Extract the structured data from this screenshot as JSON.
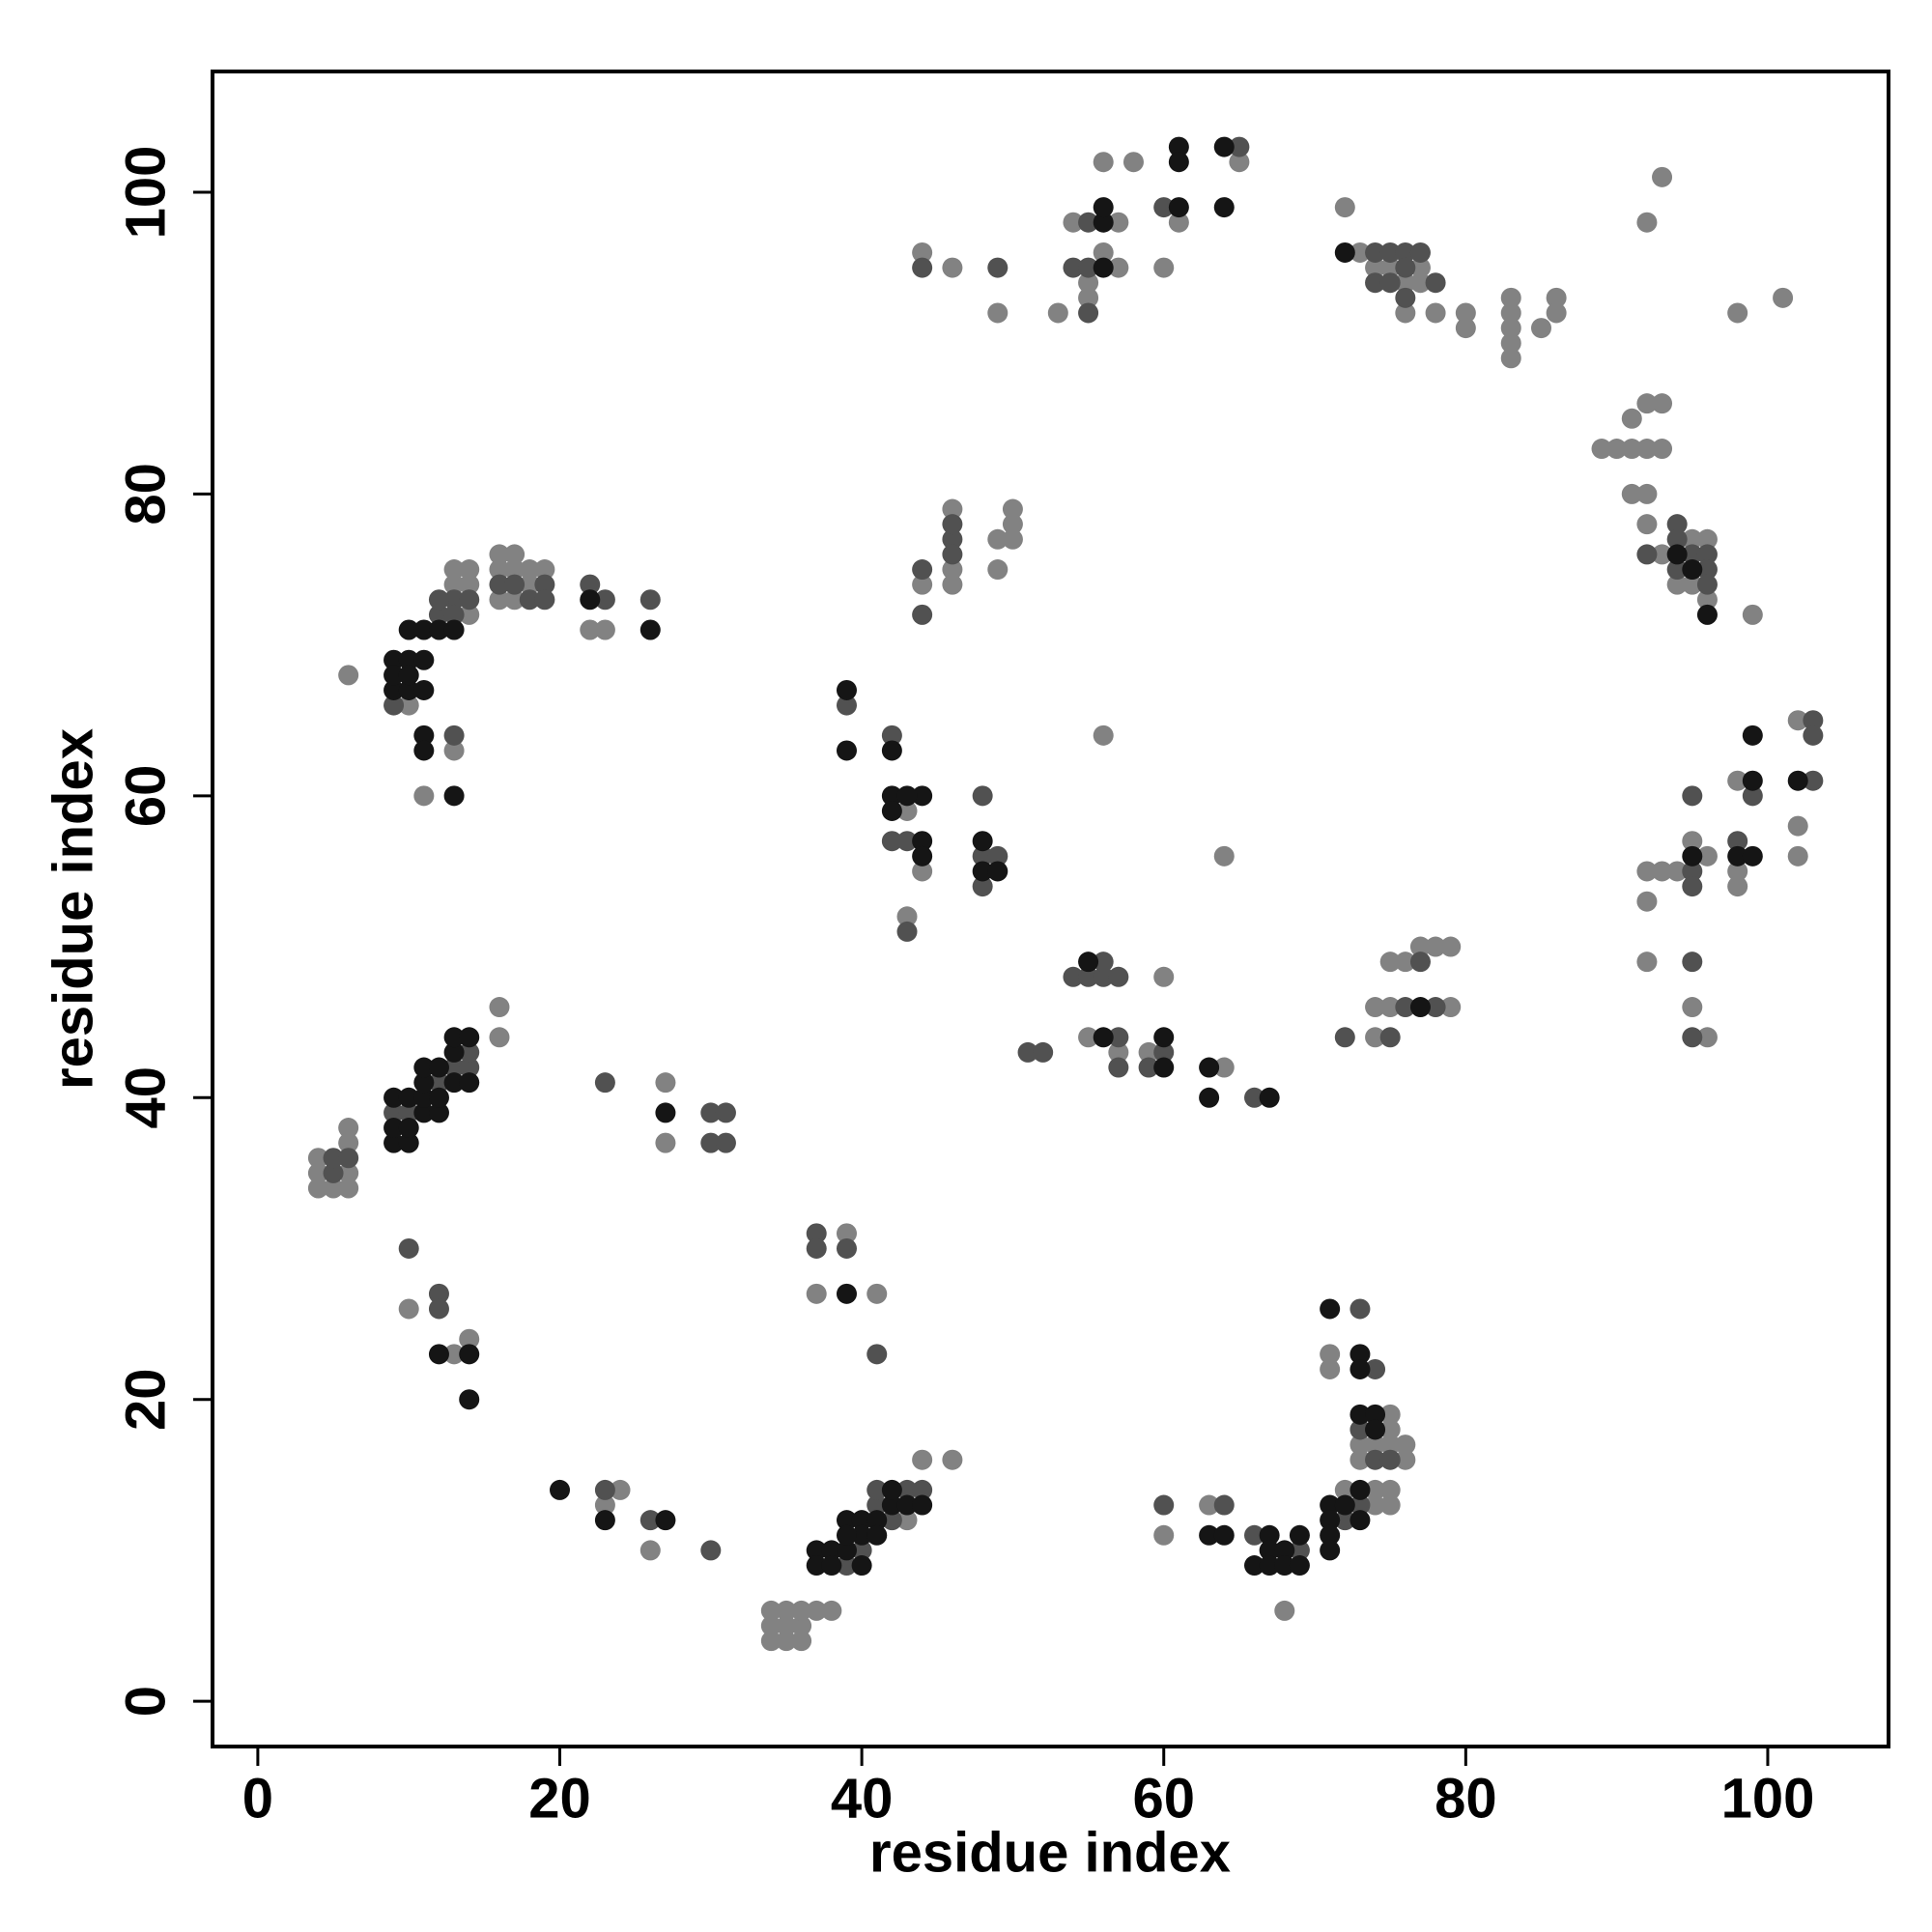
{
  "chart_data": {
    "type": "scatter",
    "xlabel": "residue index",
    "ylabel": "residue index",
    "xlim": [
      -3,
      108
    ],
    "ylim": [
      -3,
      108
    ],
    "xticks": [
      0,
      20,
      40,
      60,
      80,
      100
    ],
    "yticks": [
      0,
      20,
      40,
      60,
      80,
      100
    ],
    "grid": false,
    "series": [
      {
        "color": "#828282",
        "x": [
          4,
          5,
          6,
          4,
          6,
          4,
          6,
          6,
          16,
          16,
          10,
          11,
          13,
          13,
          14,
          13,
          14,
          14,
          6,
          16,
          17,
          16,
          17,
          18,
          19,
          16,
          17,
          18,
          22,
          23,
          27,
          27,
          10,
          13,
          14,
          24,
          23,
          26,
          34,
          35,
          36,
          34,
          35,
          36,
          34,
          35,
          36,
          37,
          38,
          44,
          46,
          43,
          39,
          37,
          41,
          43,
          43,
          44,
          44,
          46,
          46,
          46,
          49,
          50,
          50,
          50,
          49,
          44,
          46,
          49,
          53,
          54,
          57,
          55,
          55,
          56,
          57,
          56,
          58,
          60,
          61,
          65,
          55,
          57,
          59,
          60,
          64,
          56,
          64,
          60,
          63,
          68,
          71,
          71,
          75,
          75,
          73,
          74,
          75,
          76,
          73,
          76,
          72,
          74,
          75,
          74,
          75,
          72,
          73,
          74,
          75,
          77,
          76,
          77,
          76,
          78,
          80,
          80,
          83,
          83,
          83,
          83,
          83,
          85,
          86,
          86,
          92,
          93,
          98,
          101,
          74,
          75,
          79,
          75,
          76,
          77,
          78,
          79,
          74,
          89,
          90,
          91,
          92,
          93,
          91,
          92,
          93,
          91,
          92,
          92,
          93,
          95,
          96,
          94,
          95,
          96,
          99,
          92,
          93,
          94,
          92,
          92,
          95,
          96,
          95,
          96,
          98,
          98,
          98,
          102,
          102,
          102
        ],
        "values": [
          34,
          34,
          34,
          35,
          35,
          36,
          37,
          38,
          46,
          44,
          66,
          60,
          63,
          74,
          74,
          75,
          75,
          72,
          68,
          76,
          76,
          75,
          75,
          75,
          75,
          73,
          73,
          74,
          71,
          71,
          41,
          37,
          26,
          23,
          24,
          14,
          13,
          10,
          4,
          4,
          4,
          5,
          5,
          5,
          6,
          6,
          6,
          6,
          6,
          16,
          16,
          12,
          31,
          27,
          27,
          59,
          52,
          55,
          74,
          79,
          75,
          74,
          77,
          79,
          78,
          77,
          75,
          96,
          95,
          92,
          92,
          98,
          98,
          94,
          93,
          96,
          95,
          102,
          102,
          95,
          98,
          102,
          44,
          43,
          43,
          48,
          42,
          64,
          56,
          11,
          13,
          6,
          23,
          22,
          19,
          18,
          17,
          17,
          17,
          17,
          16,
          16,
          14,
          14,
          14,
          13,
          13,
          99,
          96,
          95,
          95,
          95,
          94,
          94,
          92,
          92,
          92,
          91,
          93,
          92,
          91,
          90,
          89,
          91,
          93,
          92,
          98,
          101,
          92,
          93,
          46,
          46,
          46,
          49,
          49,
          50,
          50,
          50,
          44,
          83,
          83,
          83,
          83,
          83,
          85,
          86,
          86,
          80,
          80,
          78,
          76,
          77,
          77,
          74,
          74,
          73,
          72,
          55,
          55,
          55,
          53,
          49,
          57,
          56,
          46,
          44,
          61,
          55,
          54,
          65,
          58,
          56
        ]
      },
      {
        "color": "#515151",
        "x": [
          5,
          5,
          6,
          9,
          10,
          12,
          13,
          14,
          14,
          9,
          13,
          14,
          12,
          13,
          13,
          12,
          16,
          17,
          19,
          18,
          19,
          22,
          23,
          26,
          23,
          30,
          31,
          30,
          31,
          10,
          12,
          12,
          23,
          26,
          30,
          39,
          40,
          41,
          42,
          43,
          44,
          41,
          37,
          37,
          39,
          41,
          39,
          42,
          42,
          43,
          43,
          48,
          48,
          49,
          48,
          44,
          44,
          46,
          46,
          46,
          44,
          49,
          55,
          55,
          54,
          55,
          60,
          65,
          51,
          52,
          54,
          55,
          56,
          57,
          56,
          57,
          57,
          59,
          60,
          66,
          60,
          64,
          66,
          69,
          73,
          74,
          73,
          74,
          75,
          73,
          72,
          74,
          75,
          76,
          77,
          76,
          74,
          75,
          78,
          76,
          72,
          76,
          78,
          77,
          75,
          92,
          94,
          94,
          95,
          96,
          94,
          96,
          96,
          95,
          95,
          95,
          95,
          95,
          98,
          99,
          103,
          103,
          103
        ],
        "values": [
          35,
          36,
          36,
          39,
          39,
          41,
          42,
          42,
          43,
          66,
          73,
          73,
          72,
          72,
          64,
          73,
          74,
          74,
          74,
          73,
          73,
          74,
          73,
          73,
          41,
          39,
          39,
          37,
          37,
          30,
          27,
          26,
          14,
          12,
          10,
          9,
          10,
          13,
          12,
          14,
          14,
          14,
          31,
          30,
          30,
          23,
          66,
          64,
          57,
          57,
          51,
          60,
          56,
          56,
          54,
          75,
          72,
          77,
          76,
          78,
          95,
          95,
          92,
          98,
          95,
          95,
          99,
          103,
          43,
          43,
          48,
          48,
          48,
          48,
          49,
          44,
          42,
          42,
          43,
          40,
          13,
          13,
          11,
          10,
          26,
          22,
          18,
          16,
          16,
          13,
          12,
          96,
          96,
          96,
          96,
          95,
          94,
          94,
          94,
          93,
          44,
          46,
          46,
          49,
          44,
          76,
          78,
          77,
          76,
          76,
          75,
          75,
          74,
          60,
          55,
          54,
          49,
          44,
          57,
          60,
          65,
          64,
          61
        ]
      },
      {
        "color": "#151515",
        "x": [
          9,
          9,
          9,
          10,
          10,
          10,
          11,
          11,
          11,
          11,
          12,
          12,
          12,
          13,
          13,
          13,
          14,
          14,
          10,
          11,
          12,
          13,
          9,
          10,
          11,
          9,
          10,
          11,
          9,
          10,
          11,
          11,
          13,
          22,
          26,
          27,
          12,
          14,
          14,
          20,
          23,
          27,
          37,
          38,
          39,
          37,
          38,
          40,
          39,
          40,
          41,
          40,
          41,
          42,
          43,
          42,
          44,
          39,
          39,
          39,
          39,
          42,
          42,
          44,
          42,
          44,
          44,
          43,
          48,
          48,
          49,
          56,
          56,
          56,
          61,
          61,
          61,
          64,
          64,
          55,
          56,
          60,
          60,
          63,
          63,
          67,
          63,
          64,
          67,
          67,
          68,
          66,
          67,
          68,
          69,
          69,
          71,
          73,
          73,
          73,
          74,
          74,
          71,
          72,
          73,
          73,
          71,
          71,
          71,
          72,
          77,
          94,
          95,
          96,
          95,
          98,
          99,
          99,
          99,
          102
        ],
        "values": [
          37,
          38,
          40,
          37,
          38,
          40,
          39,
          40,
          41,
          42,
          39,
          40,
          42,
          41,
          43,
          44,
          41,
          44,
          71,
          71,
          71,
          71,
          69,
          69,
          69,
          67,
          67,
          67,
          68,
          68,
          64,
          63,
          60,
          73,
          71,
          39,
          23,
          23,
          20,
          14,
          12,
          12,
          10,
          10,
          10,
          9,
          9,
          9,
          12,
          12,
          12,
          11,
          11,
          13,
          13,
          14,
          13,
          11,
          27,
          67,
          63,
          63,
          60,
          60,
          59,
          57,
          56,
          60,
          57,
          55,
          55,
          98,
          95,
          99,
          99,
          103,
          102,
          103,
          99,
          49,
          44,
          44,
          42,
          42,
          40,
          40,
          11,
          11,
          11,
          10,
          10,
          9,
          9,
          9,
          9,
          11,
          26,
          23,
          22,
          19,
          19,
          18,
          13,
          13,
          14,
          12,
          12,
          11,
          10,
          96,
          46,
          76,
          75,
          72,
          56,
          56,
          56,
          64,
          61,
          61
        ]
      }
    ]
  }
}
